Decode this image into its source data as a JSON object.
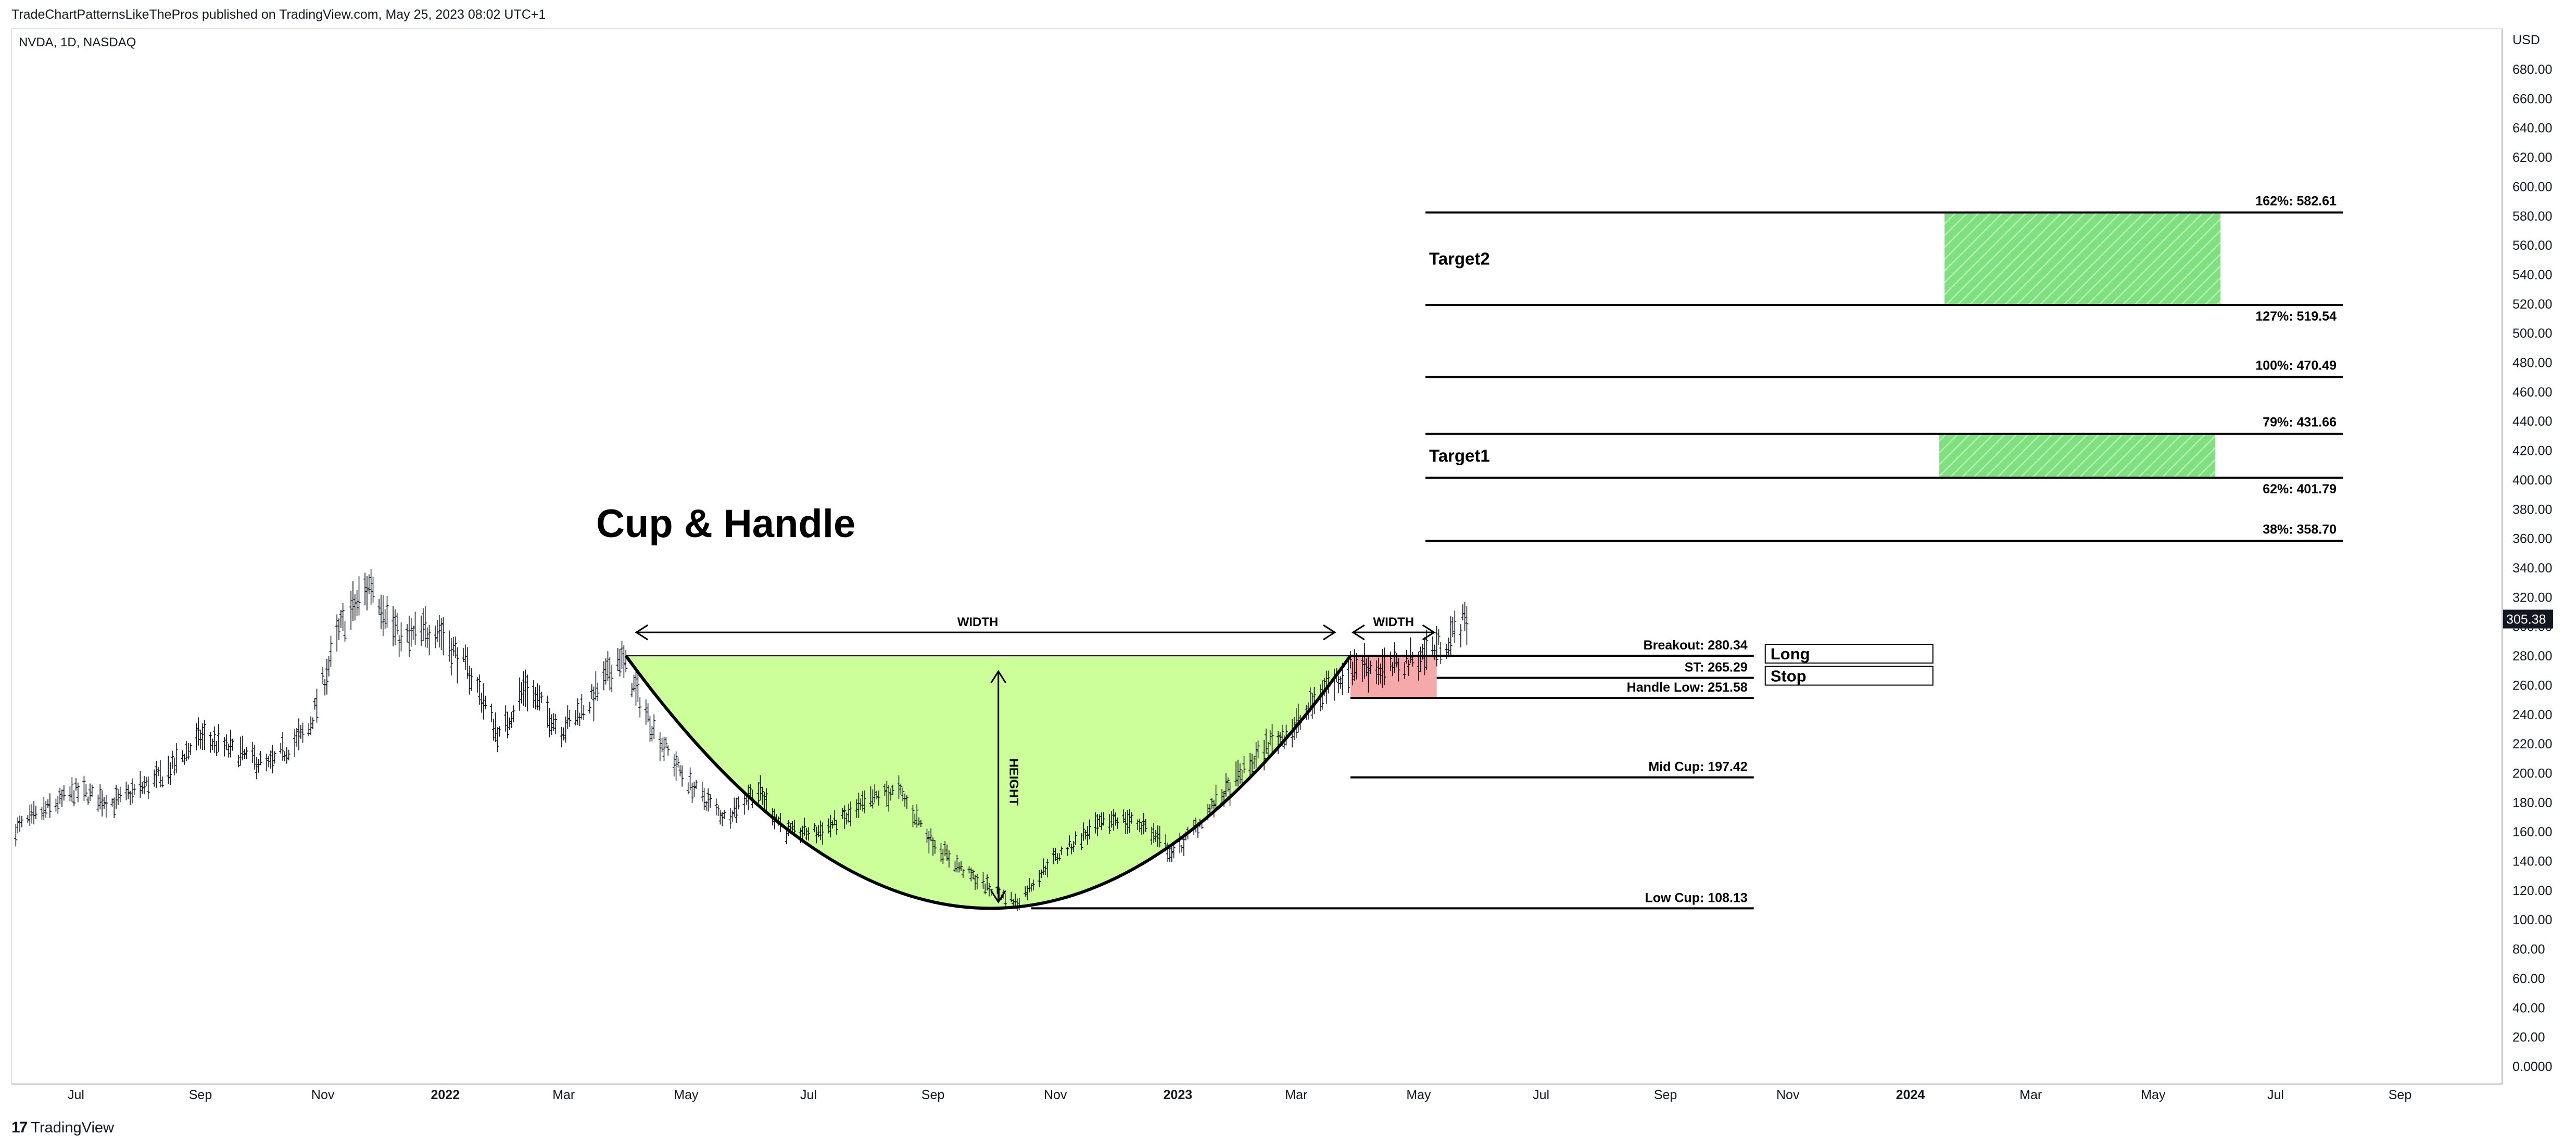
{
  "header": {
    "caption": "TradeChartPatternsLikeThePros published on TradingView.com, May 25, 2023 08:02 UTC+1",
    "symbol": "NVDA, 1D, NASDAQ"
  },
  "footer": {
    "brand_mark": "17",
    "brand": "TradingView"
  },
  "chart_data": {
    "type": "candlestick",
    "title": "Cup & Handle",
    "currency": "USD",
    "last_price_label": "305.38",
    "ylim": [
      0,
      690
    ],
    "y_ticks": [
      "0.0000",
      "20.00",
      "40.00",
      "60.00",
      "80.00",
      "100.00",
      "120.00",
      "140.00",
      "160.00",
      "180.00",
      "200.00",
      "220.00",
      "240.00",
      "260.00",
      "280.00",
      "300.00",
      "320.00",
      "340.00",
      "360.00",
      "380.00",
      "400.00",
      "420.00",
      "440.00",
      "460.00",
      "480.00",
      "500.00",
      "520.00",
      "540.00",
      "560.00",
      "580.00",
      "600.00",
      "620.00",
      "640.00",
      "660.00",
      "680.00"
    ],
    "x_ticks": [
      {
        "label": "Jul",
        "date": "2021-07-01",
        "bold": false
      },
      {
        "label": "Sep",
        "date": "2021-09-01",
        "bold": false
      },
      {
        "label": "Nov",
        "date": "2021-11-01",
        "bold": false
      },
      {
        "label": "2022",
        "date": "2022-01-01",
        "bold": true
      },
      {
        "label": "Mar",
        "date": "2022-03-01",
        "bold": false
      },
      {
        "label": "May",
        "date": "2022-05-01",
        "bold": false
      },
      {
        "label": "Jul",
        "date": "2022-07-01",
        "bold": false
      },
      {
        "label": "Sep",
        "date": "2022-09-01",
        "bold": false
      },
      {
        "label": "Nov",
        "date": "2022-11-01",
        "bold": false
      },
      {
        "label": "2023",
        "date": "2023-01-01",
        "bold": true
      },
      {
        "label": "Mar",
        "date": "2023-03-01",
        "bold": false
      },
      {
        "label": "May",
        "date": "2023-05-01",
        "bold": false
      },
      {
        "label": "Jul",
        "date": "2023-07-01",
        "bold": false
      },
      {
        "label": "Sep",
        "date": "2023-09-01",
        "bold": false
      },
      {
        "label": "Nov",
        "date": "2023-11-01",
        "bold": false
      },
      {
        "label": "2024",
        "date": "2024-01-01",
        "bold": true
      },
      {
        "label": "Mar",
        "date": "2024-03-01",
        "bold": false
      },
      {
        "label": "May",
        "date": "2024-05-01",
        "bold": false
      },
      {
        "label": "Jul",
        "date": "2024-07-01",
        "bold": false
      },
      {
        "label": "Sep",
        "date": "2024-09-01",
        "bold": false
      }
    ],
    "price_path": [
      [
        "2021-06-01",
        162
      ],
      [
        "2021-07-01",
        188
      ],
      [
        "2021-07-20",
        180
      ],
      [
        "2021-08-15",
        200
      ],
      [
        "2021-09-01",
        225
      ],
      [
        "2021-10-05",
        205
      ],
      [
        "2021-10-25",
        230
      ],
      [
        "2021-11-10",
        300
      ],
      [
        "2021-11-25",
        330
      ],
      [
        "2021-12-10",
        290
      ],
      [
        "2021-12-28",
        300
      ],
      [
        "2022-01-15",
        265
      ],
      [
        "2022-01-28",
        225
      ],
      [
        "2022-02-10",
        260
      ],
      [
        "2022-02-28",
        230
      ],
      [
        "2022-03-15",
        250
      ],
      [
        "2022-03-29",
        280
      ],
      [
        "2022-04-15",
        230
      ],
      [
        "2022-05-01",
        195
      ],
      [
        "2022-05-20",
        170
      ],
      [
        "2022-06-05",
        190
      ],
      [
        "2022-06-20",
        160
      ],
      [
        "2022-07-05",
        160
      ],
      [
        "2022-07-20",
        170
      ],
      [
        "2022-08-05",
        185
      ],
      [
        "2022-08-15",
        188
      ],
      [
        "2022-08-31",
        155
      ],
      [
        "2022-09-15",
        135
      ],
      [
        "2022-10-01",
        120
      ],
      [
        "2022-10-13",
        112
      ],
      [
        "2022-10-28",
        138
      ],
      [
        "2022-11-15",
        158
      ],
      [
        "2022-12-01",
        170
      ],
      [
        "2022-12-15",
        165
      ],
      [
        "2022-12-30",
        145
      ],
      [
        "2023-01-20",
        180
      ],
      [
        "2023-02-15",
        220
      ],
      [
        "2023-03-01",
        232
      ],
      [
        "2023-03-15",
        258
      ],
      [
        "2023-03-31",
        275
      ],
      [
        "2023-04-15",
        270
      ],
      [
        "2023-05-01",
        280
      ],
      [
        "2023-05-15",
        290
      ],
      [
        "2023-05-25",
        306
      ]
    ],
    "annotations": {
      "cup_label": "Cup & Handle",
      "width_label": "WIDTH",
      "height_label": "HEIGHT",
      "cup_rim": {
        "start": "2022-04-01",
        "end": "2023-03-28",
        "price": 280.34
      },
      "cup_bottom": {
        "date": "2022-10-01",
        "price": 108.13
      },
      "handle_zone": {
        "start": "2023-03-28",
        "end": "2023-05-10",
        "top": 280.34,
        "bottom": 251.58
      },
      "levels": [
        {
          "label": "Breakout: 280.34",
          "price": 280.34,
          "start": "2023-03-28",
          "end": "2023-10-15"
        },
        {
          "label": "ST: 265.29",
          "price": 265.29,
          "start": "2023-05-10",
          "end": "2023-10-15"
        },
        {
          "label": "Handle Low: 251.58",
          "price": 251.58,
          "start": "2023-03-28",
          "end": "2023-10-15"
        },
        {
          "label": "Mid Cup: 197.42",
          "price": 197.42,
          "start": "2023-03-28",
          "end": "2023-10-15"
        },
        {
          "label": "Low Cup: 108.13",
          "price": 108.13,
          "start": "2022-10-20",
          "end": "2023-10-15"
        }
      ],
      "fib_levels": [
        {
          "label": "162%: 582.61",
          "price": 582.61
        },
        {
          "label": "127%: 519.54",
          "price": 519.54
        },
        {
          "label": "100%: 470.49",
          "price": 470.49
        },
        {
          "label": "79%: 431.66",
          "price": 431.66
        },
        {
          "label": "62%: 401.79",
          "price": 401.79
        },
        {
          "label": "38%: 358.70",
          "price": 358.7
        }
      ],
      "targets": [
        {
          "label": "Target2",
          "top": 582.61,
          "bottom": 519.54
        },
        {
          "label": "Target1",
          "top": 431.66,
          "bottom": 401.79
        }
      ],
      "trade_boxes": [
        {
          "label": "Long",
          "price": 280.34
        },
        {
          "label": "Stop",
          "price": 265.29
        }
      ]
    },
    "colors": {
      "cup_fill": "#ccff99",
      "handle_fill": "#f5a9a9",
      "target_fill": "#7ee07e",
      "candles": "#131722",
      "price_badge": "#131722"
    }
  }
}
